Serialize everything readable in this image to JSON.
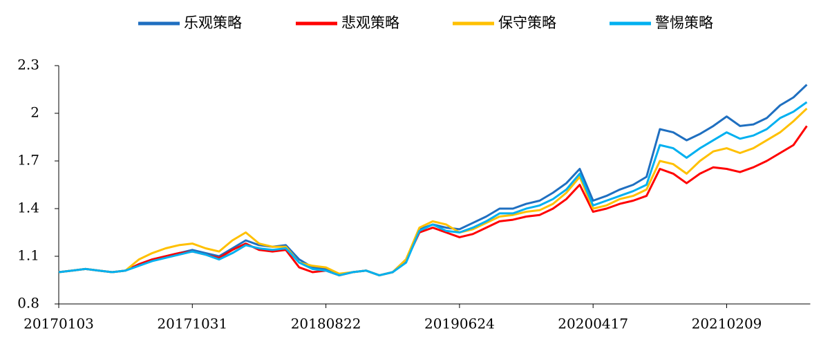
{
  "chart_data": {
    "type": "line",
    "categories": [
      "20170103",
      null,
      null,
      null,
      null,
      null,
      null,
      null,
      null,
      null,
      "20171031",
      null,
      null,
      null,
      null,
      null,
      null,
      null,
      null,
      null,
      "20180822",
      null,
      null,
      null,
      null,
      null,
      null,
      null,
      null,
      null,
      "20190624",
      null,
      null,
      null,
      null,
      null,
      null,
      null,
      null,
      null,
      "20200417",
      null,
      null,
      null,
      null,
      null,
      null,
      null,
      null,
      null,
      "20210209",
      null,
      null,
      null,
      null,
      null,
      null
    ],
    "ylim": [
      0.8,
      2.3
    ],
    "yticks": [
      0.8,
      1.1,
      1.4,
      1.7,
      2,
      2.3
    ],
    "legend": "top",
    "series": [
      {
        "name": "乐观策略",
        "color": "#1f6fc0",
        "values": [
          1.0,
          1.01,
          1.02,
          1.01,
          1.0,
          1.01,
          1.05,
          1.08,
          1.1,
          1.12,
          1.14,
          1.12,
          1.1,
          1.15,
          1.2,
          1.17,
          1.16,
          1.17,
          1.08,
          1.03,
          1.02,
          0.98,
          1.0,
          1.01,
          0.98,
          1.0,
          1.08,
          1.27,
          1.3,
          1.28,
          1.27,
          1.31,
          1.35,
          1.4,
          1.4,
          1.43,
          1.45,
          1.5,
          1.56,
          1.65,
          1.45,
          1.48,
          1.52,
          1.55,
          1.6,
          1.9,
          1.88,
          1.83,
          1.87,
          1.92,
          1.98,
          1.92,
          1.93,
          1.97,
          2.05,
          2.1,
          2.18
        ]
      },
      {
        "name": "悲观策略",
        "color": "#ff0000",
        "values": [
          1.0,
          1.01,
          1.02,
          1.01,
          1.0,
          1.01,
          1.05,
          1.08,
          1.1,
          1.12,
          1.13,
          1.11,
          1.09,
          1.14,
          1.18,
          1.14,
          1.13,
          1.14,
          1.03,
          1.0,
          1.01,
          0.98,
          1.0,
          1.01,
          0.98,
          1.0,
          1.07,
          1.25,
          1.28,
          1.25,
          1.22,
          1.24,
          1.28,
          1.32,
          1.33,
          1.35,
          1.36,
          1.4,
          1.46,
          1.55,
          1.38,
          1.4,
          1.43,
          1.45,
          1.48,
          1.65,
          1.62,
          1.56,
          1.62,
          1.66,
          1.65,
          1.63,
          1.66,
          1.7,
          1.75,
          1.8,
          1.92
        ]
      },
      {
        "name": "保守策略",
        "color": "#ffc000",
        "values": [
          1.0,
          1.01,
          1.02,
          1.01,
          1.0,
          1.01,
          1.08,
          1.12,
          1.15,
          1.17,
          1.18,
          1.15,
          1.13,
          1.2,
          1.25,
          1.18,
          1.16,
          1.16,
          1.06,
          1.04,
          1.03,
          0.99,
          1.0,
          1.01,
          0.98,
          1.0,
          1.08,
          1.28,
          1.32,
          1.3,
          1.25,
          1.27,
          1.31,
          1.35,
          1.36,
          1.38,
          1.39,
          1.43,
          1.5,
          1.6,
          1.4,
          1.42,
          1.46,
          1.48,
          1.52,
          1.7,
          1.68,
          1.62,
          1.7,
          1.76,
          1.78,
          1.75,
          1.78,
          1.83,
          1.88,
          1.95,
          2.03
        ]
      },
      {
        "name": "警惕策略",
        "color": "#00b0f0",
        "values": [
          1.0,
          1.01,
          1.02,
          1.01,
          1.0,
          1.01,
          1.04,
          1.07,
          1.09,
          1.11,
          1.13,
          1.11,
          1.08,
          1.12,
          1.17,
          1.15,
          1.14,
          1.15,
          1.06,
          1.02,
          1.01,
          0.98,
          1.0,
          1.01,
          0.98,
          1.0,
          1.06,
          1.26,
          1.3,
          1.26,
          1.25,
          1.28,
          1.32,
          1.37,
          1.37,
          1.4,
          1.42,
          1.46,
          1.52,
          1.62,
          1.42,
          1.45,
          1.48,
          1.51,
          1.55,
          1.8,
          1.78,
          1.72,
          1.78,
          1.83,
          1.88,
          1.84,
          1.86,
          1.9,
          1.97,
          2.01,
          2.07
        ]
      }
    ]
  }
}
